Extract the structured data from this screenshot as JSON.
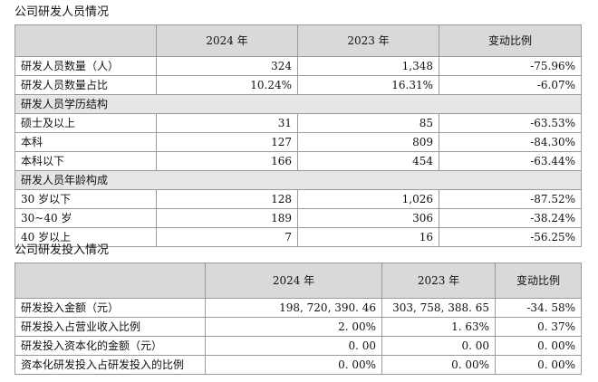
{
  "personnel": {
    "title": "公司研发人员情况",
    "headers": [
      "",
      "2024 年",
      "2023 年",
      "变动比例"
    ],
    "rows": [
      {
        "type": "data",
        "label": "研发人员数量（人）",
        "v2024": "324",
        "v2023": "1,348",
        "change": "-75.96%"
      },
      {
        "type": "data",
        "label": "研发人员数量占比",
        "v2024": "10.24%",
        "v2023": "16.31%",
        "change": "-6.07%"
      },
      {
        "type": "group",
        "label": "研发人员学历结构"
      },
      {
        "type": "data",
        "label": "硕士及以上",
        "v2024": "31",
        "v2023": "85",
        "change": "-63.53%"
      },
      {
        "type": "data",
        "label": "本科",
        "v2024": "127",
        "v2023": "809",
        "change": "-84.30%"
      },
      {
        "type": "data",
        "label": "本科以下",
        "v2024": "166",
        "v2023": "454",
        "change": "-63.44%"
      },
      {
        "type": "group",
        "label": "研发人员年龄构成"
      },
      {
        "type": "data",
        "label": "30 岁以下",
        "v2024": "128",
        "v2023": "1,026",
        "change": "-87.52%"
      },
      {
        "type": "data",
        "label": "30~40 岁",
        "v2024": "189",
        "v2023": "306",
        "change": "-38.24%"
      },
      {
        "type": "data",
        "label": "40 岁以上",
        "v2024": "7",
        "v2023": "16",
        "change": "-56.25%"
      }
    ]
  },
  "investment": {
    "title": "公司研发投入情况",
    "headers": [
      "",
      "2024 年",
      "2023 年",
      "变动比例"
    ],
    "rows": [
      {
        "label": "研发投入金额（元）",
        "v2024": "198, 720, 390. 46",
        "v2023": "303, 758, 388. 65",
        "change": "-34. 58%"
      },
      {
        "label": "研发投入占营业收入比例",
        "v2024": "2. 00%",
        "v2023": "1. 63%",
        "change": "0. 37%"
      },
      {
        "label": "研发投入资本化的金额（元）",
        "v2024": "0. 00",
        "v2023": "0. 00",
        "change": "0. 00%"
      },
      {
        "label": "资本化研发投入占研发投入的比例",
        "v2024": "0. 00%",
        "v2023": "0. 00%",
        "change": "0. 00%"
      }
    ]
  }
}
